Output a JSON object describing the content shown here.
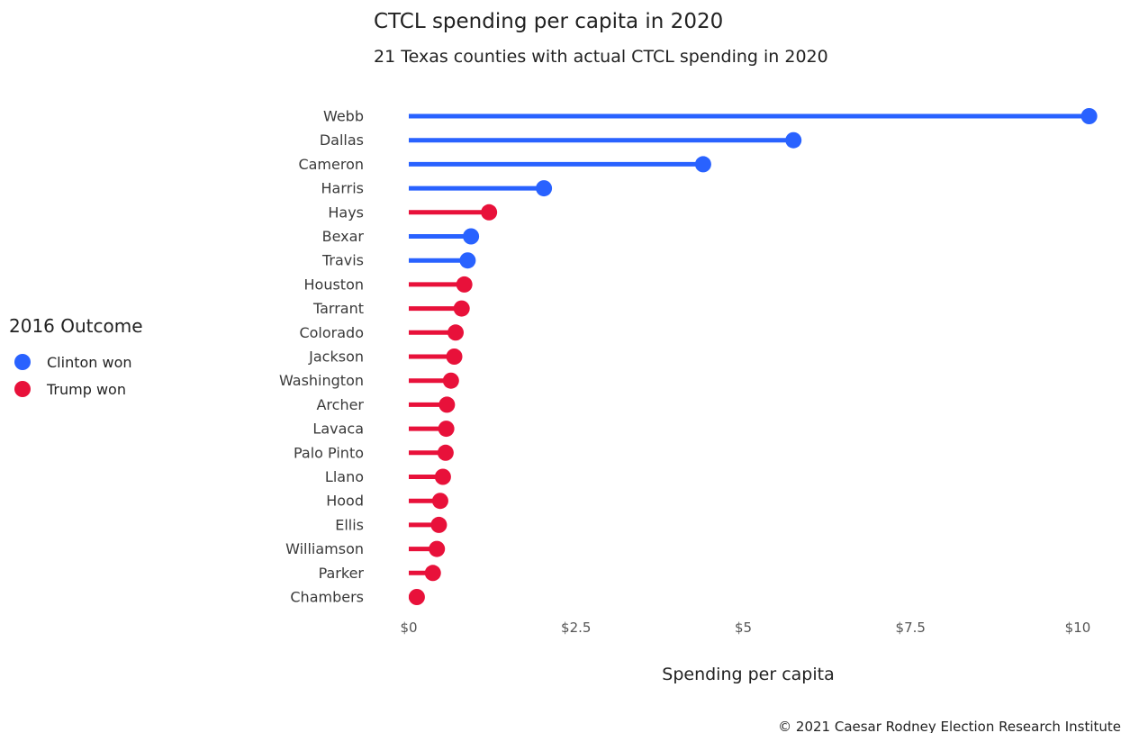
{
  "chart_data": {
    "type": "lollipop",
    "title": "CTCL spending per capita in 2020",
    "subtitle": "21 Texas counties with actual CTCL spending in 2020",
    "xlabel": "Spending per capita",
    "xlim": [
      0,
      10
    ],
    "x_ticks": [
      0,
      2.5,
      5,
      7.5,
      10
    ],
    "x_tick_labels": [
      "$0",
      "$2.5",
      "$5",
      "$7.5",
      "$10"
    ],
    "grid": false,
    "legend": {
      "title": "2016 Outcome",
      "placement": "left",
      "entries": [
        {
          "key": "clinton",
          "label": "Clinton won",
          "color": "#2962ff"
        },
        {
          "key": "trump",
          "label": "Trump won",
          "color": "#e8113a"
        }
      ]
    },
    "categories": [
      "Webb",
      "Dallas",
      "Cameron",
      "Harris",
      "Hays",
      "Bexar",
      "Travis",
      "Houston",
      "Tarrant",
      "Colorado",
      "Jackson",
      "Washington",
      "Archer",
      "Lavaca",
      "Palo Pinto",
      "Llano",
      "Hood",
      "Ellis",
      "Williamson",
      "Parker",
      "Chambers"
    ],
    "values": [
      10.17,
      5.75,
      4.4,
      2.02,
      1.2,
      0.93,
      0.88,
      0.83,
      0.79,
      0.7,
      0.68,
      0.63,
      0.57,
      0.56,
      0.55,
      0.51,
      0.47,
      0.45,
      0.42,
      0.36,
      0.12
    ],
    "outcome": [
      "clinton",
      "clinton",
      "clinton",
      "clinton",
      "trump",
      "clinton",
      "clinton",
      "trump",
      "trump",
      "trump",
      "trump",
      "trump",
      "trump",
      "trump",
      "trump",
      "trump",
      "trump",
      "trump",
      "trump",
      "trump",
      "trump"
    ]
  },
  "credit": "© 2021 Caesar Rodney Election Research Institute"
}
